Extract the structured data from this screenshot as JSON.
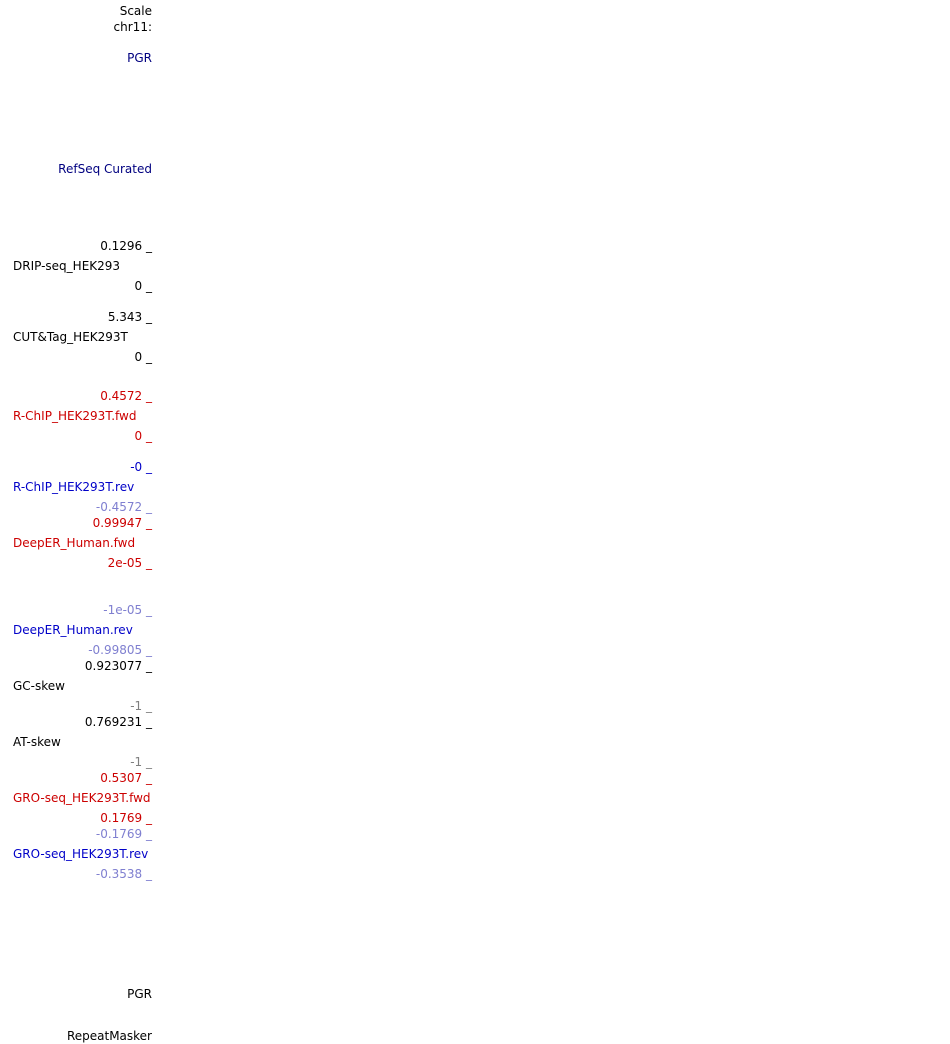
{
  "header": {
    "scale_label": "Scale",
    "chr_label": "chr11:"
  },
  "tracks": {
    "gene_top": "PGR",
    "refseq": "RefSeq Curated",
    "drip": {
      "max": "0.1296 _",
      "name": "DRIP-seq_HEK293",
      "min": "0 _"
    },
    "cuttag": {
      "max": "5.343 _",
      "name": "CUT&Tag_HEK293T",
      "min": "0 _"
    },
    "rchip_fwd": {
      "max": "0.4572 _",
      "name": "R-ChIP_HEK293T.fwd",
      "min": "0 _"
    },
    "rchip_rev": {
      "max": "-0 _",
      "name": "R-ChIP_HEK293T.rev",
      "min": "-0.4572 _"
    },
    "deeper_fwd": {
      "max": "0.99947 _",
      "name": "DeepER_Human.fwd",
      "min": "2e-05 _"
    },
    "deeper_rev": {
      "max": "-1e-05 _",
      "name": "DeepER_Human.rev",
      "min": "-0.99805 _"
    },
    "gc_skew": {
      "max": "0.923077 _",
      "name": "GC-skew",
      "min": "-1 _"
    },
    "at_skew": {
      "max": "0.769231 _",
      "name": "AT-skew",
      "min": "-1 _"
    },
    "gro_fwd": {
      "max": "0.5307 _",
      "name": "GRO-seq_HEK293T.fwd",
      "min": "0.1769 _"
    },
    "gro_rev": {
      "max": "-0.1769 _",
      "name": "GRO-seq_HEK293T.rev",
      "min": "-0.3538 _"
    },
    "gene_bottom": "PGR",
    "repeatmasker": "RepeatMasker"
  },
  "colors": {
    "black": "#000000",
    "navy": "#000080",
    "red": "#cc0000",
    "blue": "#0000c8",
    "lightblue": "#7f7fd0",
    "gray": "#7f7f7f"
  }
}
